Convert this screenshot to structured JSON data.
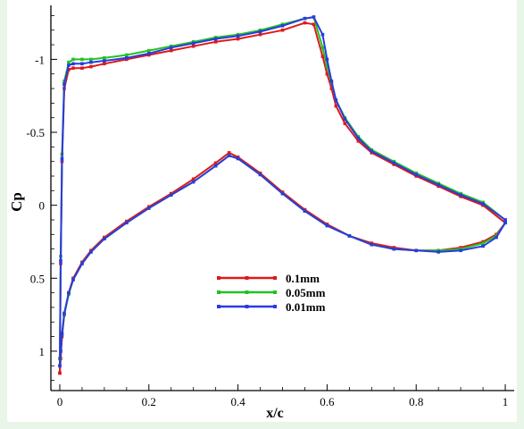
{
  "chart_data": {
    "type": "line",
    "title": "",
    "xlabel": "x/c",
    "ylabel": "Cp",
    "xlim": [
      -0.02,
      1.02
    ],
    "ylim": [
      1.27,
      -1.37
    ],
    "y_inverted": true,
    "x_ticks": [
      {
        "value": 0,
        "label": "0"
      },
      {
        "value": 0.2,
        "label": "0.2"
      },
      {
        "value": 0.4,
        "label": "0.4"
      },
      {
        "value": 0.6,
        "label": "0.6"
      },
      {
        "value": 0.8,
        "label": "0.8"
      },
      {
        "value": 1.0,
        "label": "1"
      }
    ],
    "y_ticks": [
      {
        "value": -1,
        "label": "-1"
      },
      {
        "value": -0.5,
        "label": "-0.5"
      },
      {
        "value": 0,
        "label": "0"
      },
      {
        "value": 0.5,
        "label": "0.5"
      },
      {
        "value": 1,
        "label": "1"
      }
    ],
    "grid": false,
    "legend_position": "center",
    "series": [
      {
        "name": "0.1mm",
        "color": "#dd1a1a",
        "upper": {
          "x": [
            0.0,
            0.002,
            0.005,
            0.01,
            0.02,
            0.03,
            0.05,
            0.07,
            0.1,
            0.15,
            0.2,
            0.25,
            0.3,
            0.35,
            0.4,
            0.45,
            0.5,
            0.55,
            0.57,
            0.59,
            0.6,
            0.61,
            0.62,
            0.64,
            0.67,
            0.7,
            0.75,
            0.8,
            0.85,
            0.9,
            0.95,
            1.0
          ],
          "y": [
            1.15,
            0.4,
            -0.3,
            -0.8,
            -0.93,
            -0.94,
            -0.94,
            -0.95,
            -0.97,
            -1.0,
            -1.03,
            -1.06,
            -1.09,
            -1.12,
            -1.14,
            -1.17,
            -1.2,
            -1.25,
            -1.24,
            -1.02,
            -0.9,
            -0.8,
            -0.68,
            -0.56,
            -0.44,
            -0.36,
            -0.28,
            -0.2,
            -0.13,
            -0.06,
            0.0,
            0.12
          ]
        },
        "lower": {
          "x": [
            0.0,
            0.002,
            0.005,
            0.01,
            0.02,
            0.03,
            0.05,
            0.07,
            0.1,
            0.15,
            0.2,
            0.25,
            0.3,
            0.35,
            0.38,
            0.4,
            0.45,
            0.5,
            0.55,
            0.6,
            0.65,
            0.7,
            0.75,
            0.8,
            0.85,
            0.9,
            0.95,
            0.98,
            1.0
          ],
          "y": [
            1.15,
            1.05,
            0.9,
            0.75,
            0.6,
            0.5,
            0.39,
            0.31,
            0.22,
            0.11,
            0.01,
            -0.08,
            -0.18,
            -0.29,
            -0.36,
            -0.33,
            -0.22,
            -0.09,
            0.03,
            0.13,
            0.21,
            0.26,
            0.29,
            0.31,
            0.31,
            0.29,
            0.25,
            0.2,
            0.12
          ]
        }
      },
      {
        "name": "0.05mm",
        "color": "#22c222",
        "upper": {
          "x": [
            0.0,
            0.002,
            0.005,
            0.01,
            0.02,
            0.03,
            0.05,
            0.07,
            0.1,
            0.15,
            0.2,
            0.25,
            0.3,
            0.35,
            0.4,
            0.45,
            0.5,
            0.55,
            0.57,
            0.59,
            0.6,
            0.61,
            0.62,
            0.64,
            0.67,
            0.7,
            0.75,
            0.8,
            0.85,
            0.9,
            0.95,
            1.0
          ],
          "y": [
            1.05,
            0.35,
            -0.35,
            -0.85,
            -0.98,
            -1.0,
            -1.0,
            -1.0,
            -1.01,
            -1.03,
            -1.06,
            -1.09,
            -1.12,
            -1.15,
            -1.17,
            -1.2,
            -1.24,
            -1.28,
            -1.29,
            -1.08,
            -0.95,
            -0.84,
            -0.72,
            -0.6,
            -0.47,
            -0.38,
            -0.3,
            -0.22,
            -0.15,
            -0.08,
            -0.02,
            0.1
          ]
        },
        "lower": {
          "x": [
            0.0,
            0.002,
            0.005,
            0.01,
            0.02,
            0.03,
            0.05,
            0.07,
            0.1,
            0.15,
            0.2,
            0.25,
            0.3,
            0.35,
            0.38,
            0.4,
            0.45,
            0.5,
            0.55,
            0.6,
            0.65,
            0.7,
            0.75,
            0.8,
            0.85,
            0.9,
            0.95,
            0.98,
            1.0
          ],
          "y": [
            1.05,
            1.0,
            0.88,
            0.75,
            0.61,
            0.51,
            0.4,
            0.32,
            0.23,
            0.12,
            0.02,
            -0.07,
            -0.16,
            -0.27,
            -0.34,
            -0.32,
            -0.21,
            -0.08,
            0.04,
            0.14,
            0.21,
            0.27,
            0.3,
            0.31,
            0.31,
            0.3,
            0.26,
            0.21,
            0.12
          ]
        }
      },
      {
        "name": "0.01mm",
        "color": "#2a3be0",
        "upper": {
          "x": [
            0.0,
            0.002,
            0.005,
            0.01,
            0.02,
            0.03,
            0.05,
            0.07,
            0.1,
            0.15,
            0.2,
            0.25,
            0.3,
            0.35,
            0.4,
            0.45,
            0.5,
            0.55,
            0.57,
            0.59,
            0.6,
            0.61,
            0.62,
            0.64,
            0.67,
            0.7,
            0.75,
            0.8,
            0.85,
            0.9,
            0.95,
            1.0
          ],
          "y": [
            1.1,
            0.38,
            -0.32,
            -0.83,
            -0.96,
            -0.97,
            -0.97,
            -0.98,
            -0.99,
            -1.01,
            -1.04,
            -1.08,
            -1.11,
            -1.14,
            -1.16,
            -1.19,
            -1.23,
            -1.28,
            -1.29,
            -1.17,
            -1.0,
            -0.85,
            -0.72,
            -0.59,
            -0.46,
            -0.37,
            -0.29,
            -0.21,
            -0.14,
            -0.07,
            -0.01,
            0.1
          ]
        },
        "lower": {
          "x": [
            0.0,
            0.002,
            0.005,
            0.01,
            0.02,
            0.03,
            0.05,
            0.07,
            0.1,
            0.15,
            0.2,
            0.25,
            0.3,
            0.35,
            0.38,
            0.4,
            0.45,
            0.5,
            0.55,
            0.6,
            0.65,
            0.7,
            0.75,
            0.8,
            0.85,
            0.9,
            0.95,
            0.98,
            1.0
          ],
          "y": [
            1.1,
            1.0,
            0.88,
            0.74,
            0.6,
            0.51,
            0.4,
            0.32,
            0.23,
            0.12,
            0.02,
            -0.07,
            -0.16,
            -0.27,
            -0.34,
            -0.32,
            -0.21,
            -0.08,
            0.04,
            0.14,
            0.21,
            0.27,
            0.3,
            0.31,
            0.32,
            0.31,
            0.28,
            0.22,
            0.12
          ]
        }
      }
    ]
  }
}
